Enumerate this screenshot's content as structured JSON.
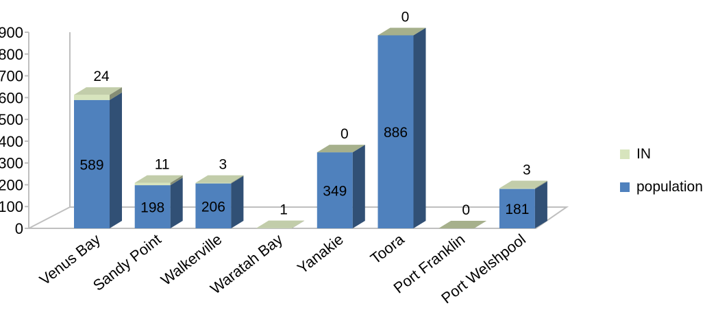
{
  "chart_data": {
    "type": "bar",
    "stacked": true,
    "three_d": true,
    "categories": [
      "Venus Bay",
      "Sandy Point",
      "Walkerville",
      "Waratah Bay",
      "Yanakie",
      "Toora",
      "Port Franklin",
      "Port Welshpool"
    ],
    "series": [
      {
        "name": "population",
        "values": [
          589,
          198,
          206,
          0,
          349,
          886,
          0,
          181
        ],
        "color": "#4f81bd"
      },
      {
        "name": "IN",
        "values": [
          24,
          11,
          3,
          1,
          0,
          0,
          0,
          3
        ],
        "color": "#d7e4bd"
      }
    ],
    "population_labels": [
      "589",
      "198",
      "206",
      "",
      "349",
      "886",
      "",
      "181"
    ],
    "in_labels": [
      "24",
      "11",
      "3",
      "1",
      "0",
      "0",
      "0",
      "3"
    ],
    "yticks": [
      "0",
      "100",
      "200",
      "300",
      "400",
      "500",
      "600",
      "700",
      "800",
      "900"
    ],
    "ylim": [
      0,
      900
    ],
    "legend_position": "right",
    "grid": false,
    "colors": {
      "population": "#4f81bd",
      "in": "#d7e4bd",
      "zero_cap": "#a6b08c",
      "floor": "#ffffff"
    }
  },
  "legend": {
    "items": [
      {
        "label": "IN",
        "color": "#d7e4bd"
      },
      {
        "label": "population",
        "color": "#4f81bd"
      }
    ]
  }
}
